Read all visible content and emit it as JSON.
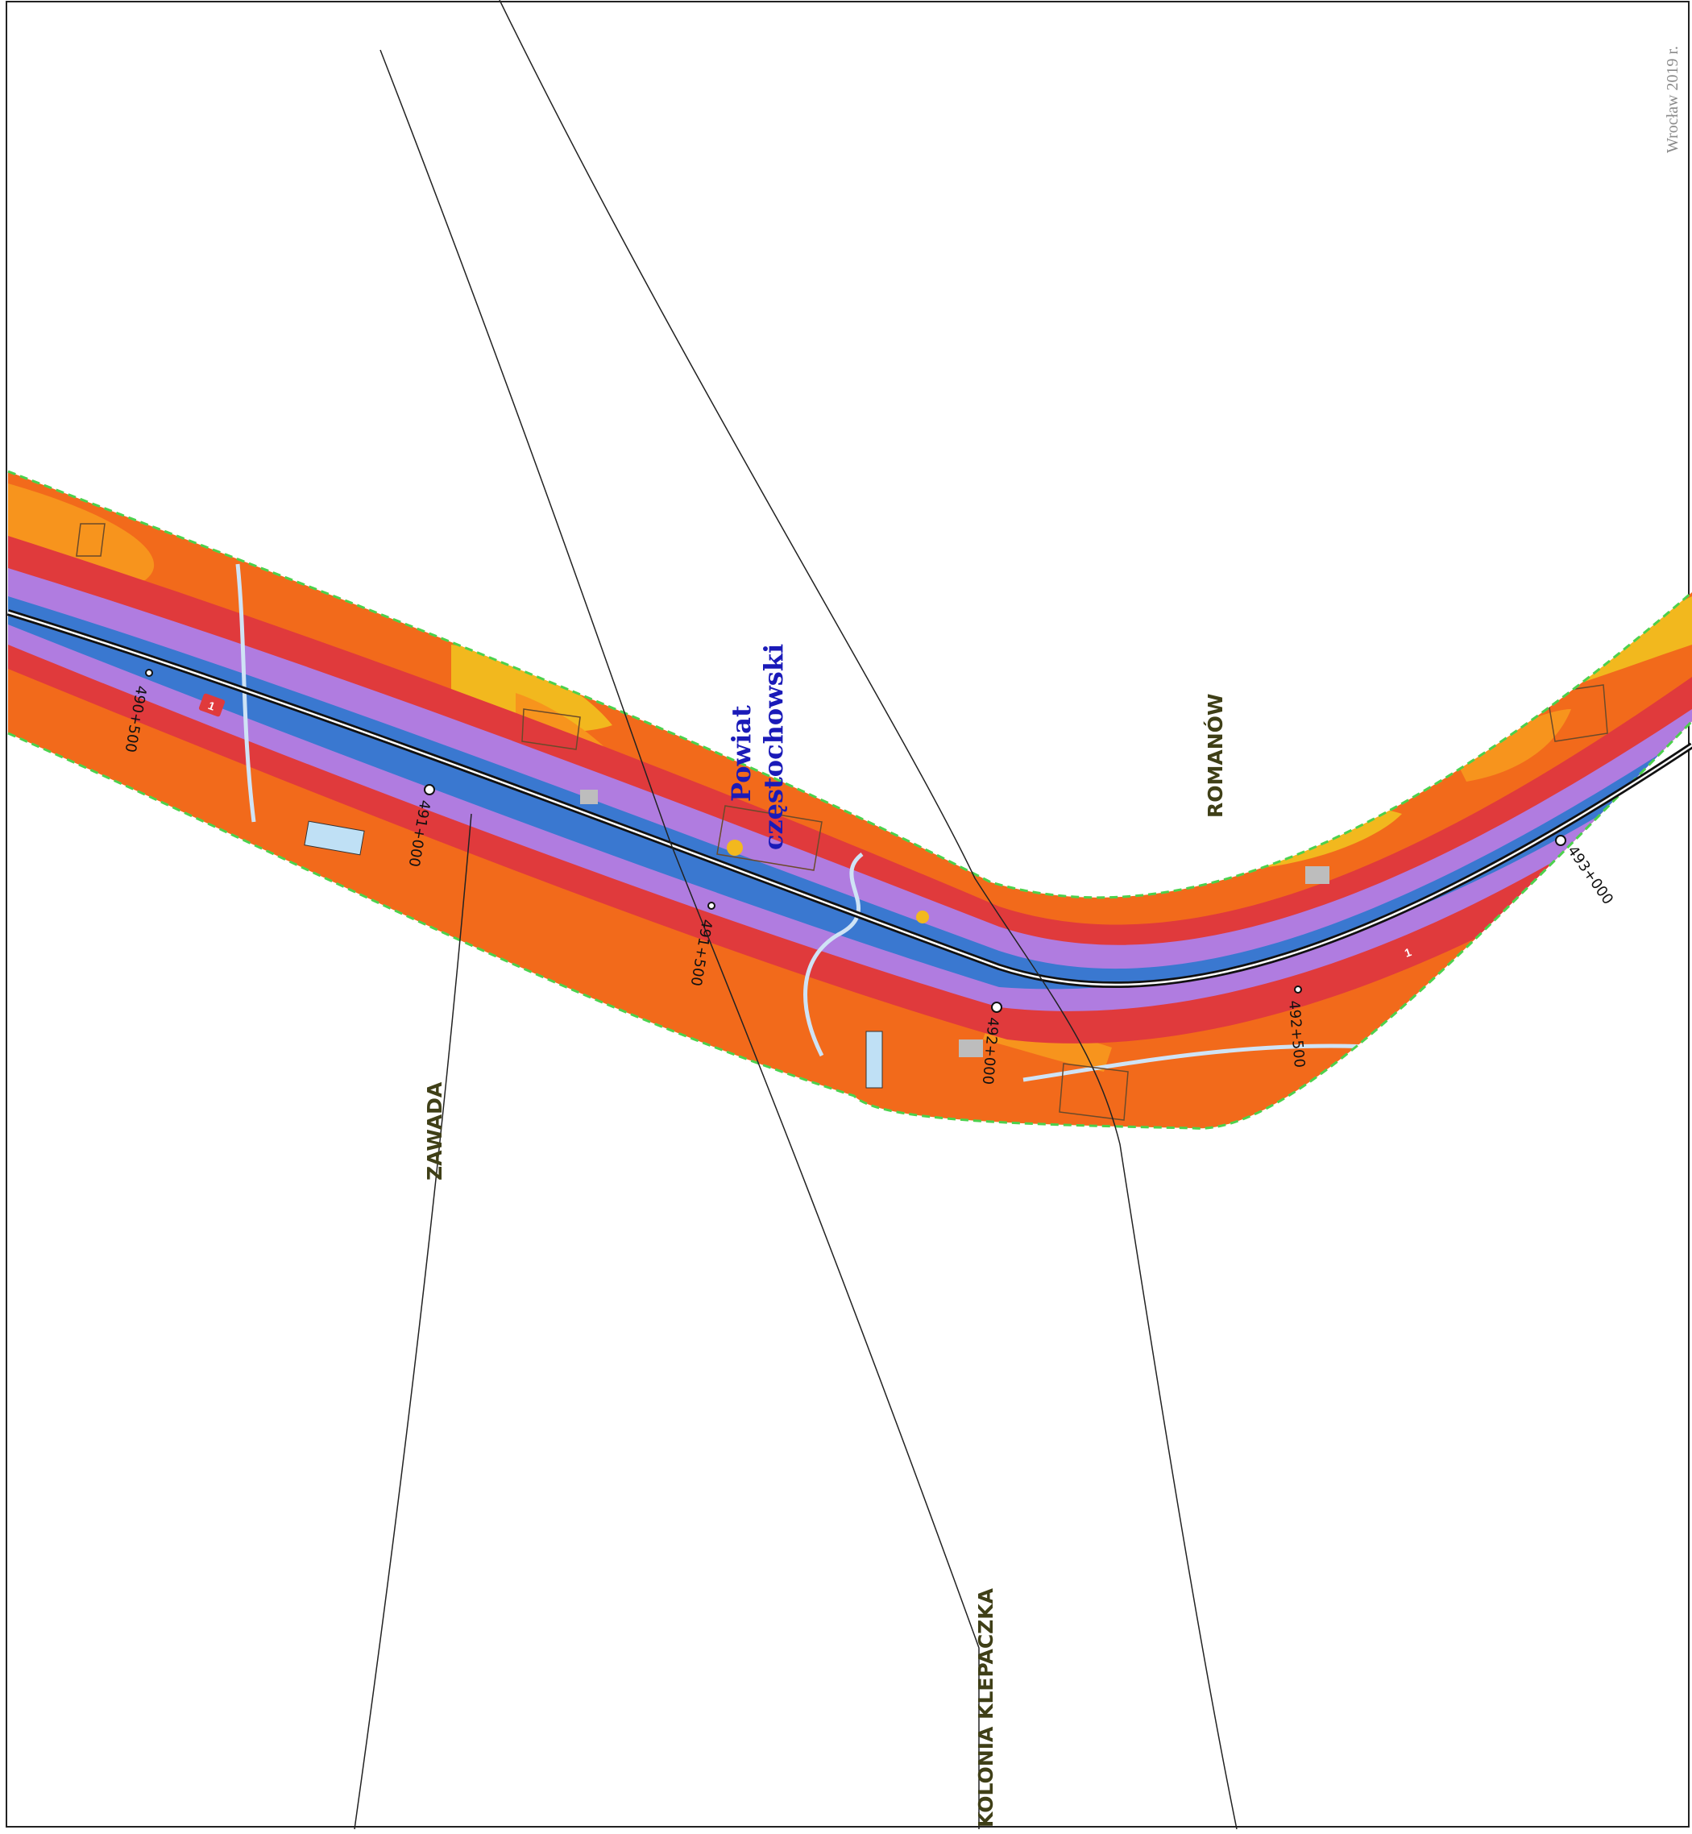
{
  "map": {
    "place_names": {
      "zawada": "ZAWADA",
      "romanow": "ROMANÓW",
      "kolonia_klepaczka": "KOLONIA KLEPACZKA"
    },
    "county_label": {
      "line1": "Powiat",
      "line2": "częstochowski"
    },
    "chainage_markers": {
      "km_490_500": "490+500",
      "km_491_000": "491+000",
      "km_491_500": "491+500",
      "km_492_000": "492+000",
      "km_492_500": "492+500",
      "km_493_000": "493+000"
    },
    "road_shield": "1",
    "footer_text": "Wrocław  2019 r.",
    "colors": {
      "outer_zone": "#f26a1b",
      "light_zone": "#f7941d",
      "yellow_zone": "#f2b81e",
      "red_zone": "#e03a3c",
      "violet_zone": "#b07ce0",
      "blue_zone": "#3a78d0",
      "road": "#111111",
      "stream": "#cfe3f5",
      "buffer_outline": "#4cd14c",
      "county_label": "#1a1ab8",
      "road_shield": "#e03a3c"
    }
  }
}
